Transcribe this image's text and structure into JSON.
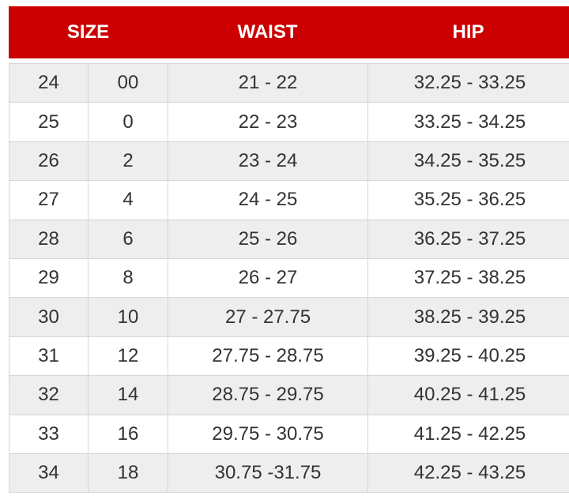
{
  "header": {
    "size": "SIZE",
    "waist": "WAIST",
    "hip": "HIP"
  },
  "colors": {
    "header_bg": "#cc0000",
    "header_text": "#ffffff",
    "row_alt": "#eeeeee"
  },
  "rows": [
    [
      "24",
      "00",
      "21 - 22",
      "32.25 - 33.25"
    ],
    [
      "25",
      "0",
      "22 - 23",
      "33.25 - 34.25"
    ],
    [
      "26",
      "2",
      "23 - 24",
      "34.25 - 35.25"
    ],
    [
      "27",
      "4",
      "24 - 25",
      "35.25 - 36.25"
    ],
    [
      "28",
      "6",
      "25 - 26",
      "36.25 - 37.25"
    ],
    [
      "29",
      "8",
      "26 - 27",
      "37.25 - 38.25"
    ],
    [
      "30",
      "10",
      "27 - 27.75",
      "38.25 - 39.25"
    ],
    [
      "31",
      "12",
      "27.75 - 28.75",
      "39.25 - 40.25"
    ],
    [
      "32",
      "14",
      "28.75 - 29.75",
      "40.25 - 41.25"
    ],
    [
      "33",
      "16",
      "29.75 - 30.75",
      "41.25 - 42.25"
    ],
    [
      "34",
      "18",
      "30.75 -31.75",
      "42.25 - 43.25"
    ]
  ]
}
